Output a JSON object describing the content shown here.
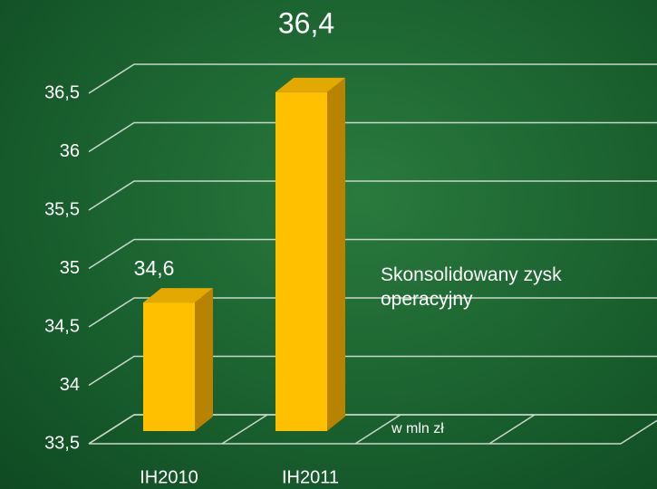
{
  "chart_data": {
    "type": "bar3d",
    "categories": [
      "IH2010",
      "IH2011"
    ],
    "values": [
      34.6,
      36.4
    ],
    "value_labels": [
      "34,6",
      "36,4"
    ],
    "color": "#ffc000",
    "ylim": [
      33.5,
      36.5
    ],
    "yticks": [
      {
        "value": 33.5,
        "label": "33,5"
      },
      34,
      {
        "value": 34.5,
        "label": "34,5"
      },
      35,
      {
        "value": 35.5,
        "label": "35,5"
      },
      36,
      {
        "value": 36.5,
        "label": "36,5"
      }
    ],
    "grid": true,
    "annotations": [
      "Skonsolidowany zysk operacyjny",
      "w mln zł"
    ]
  }
}
